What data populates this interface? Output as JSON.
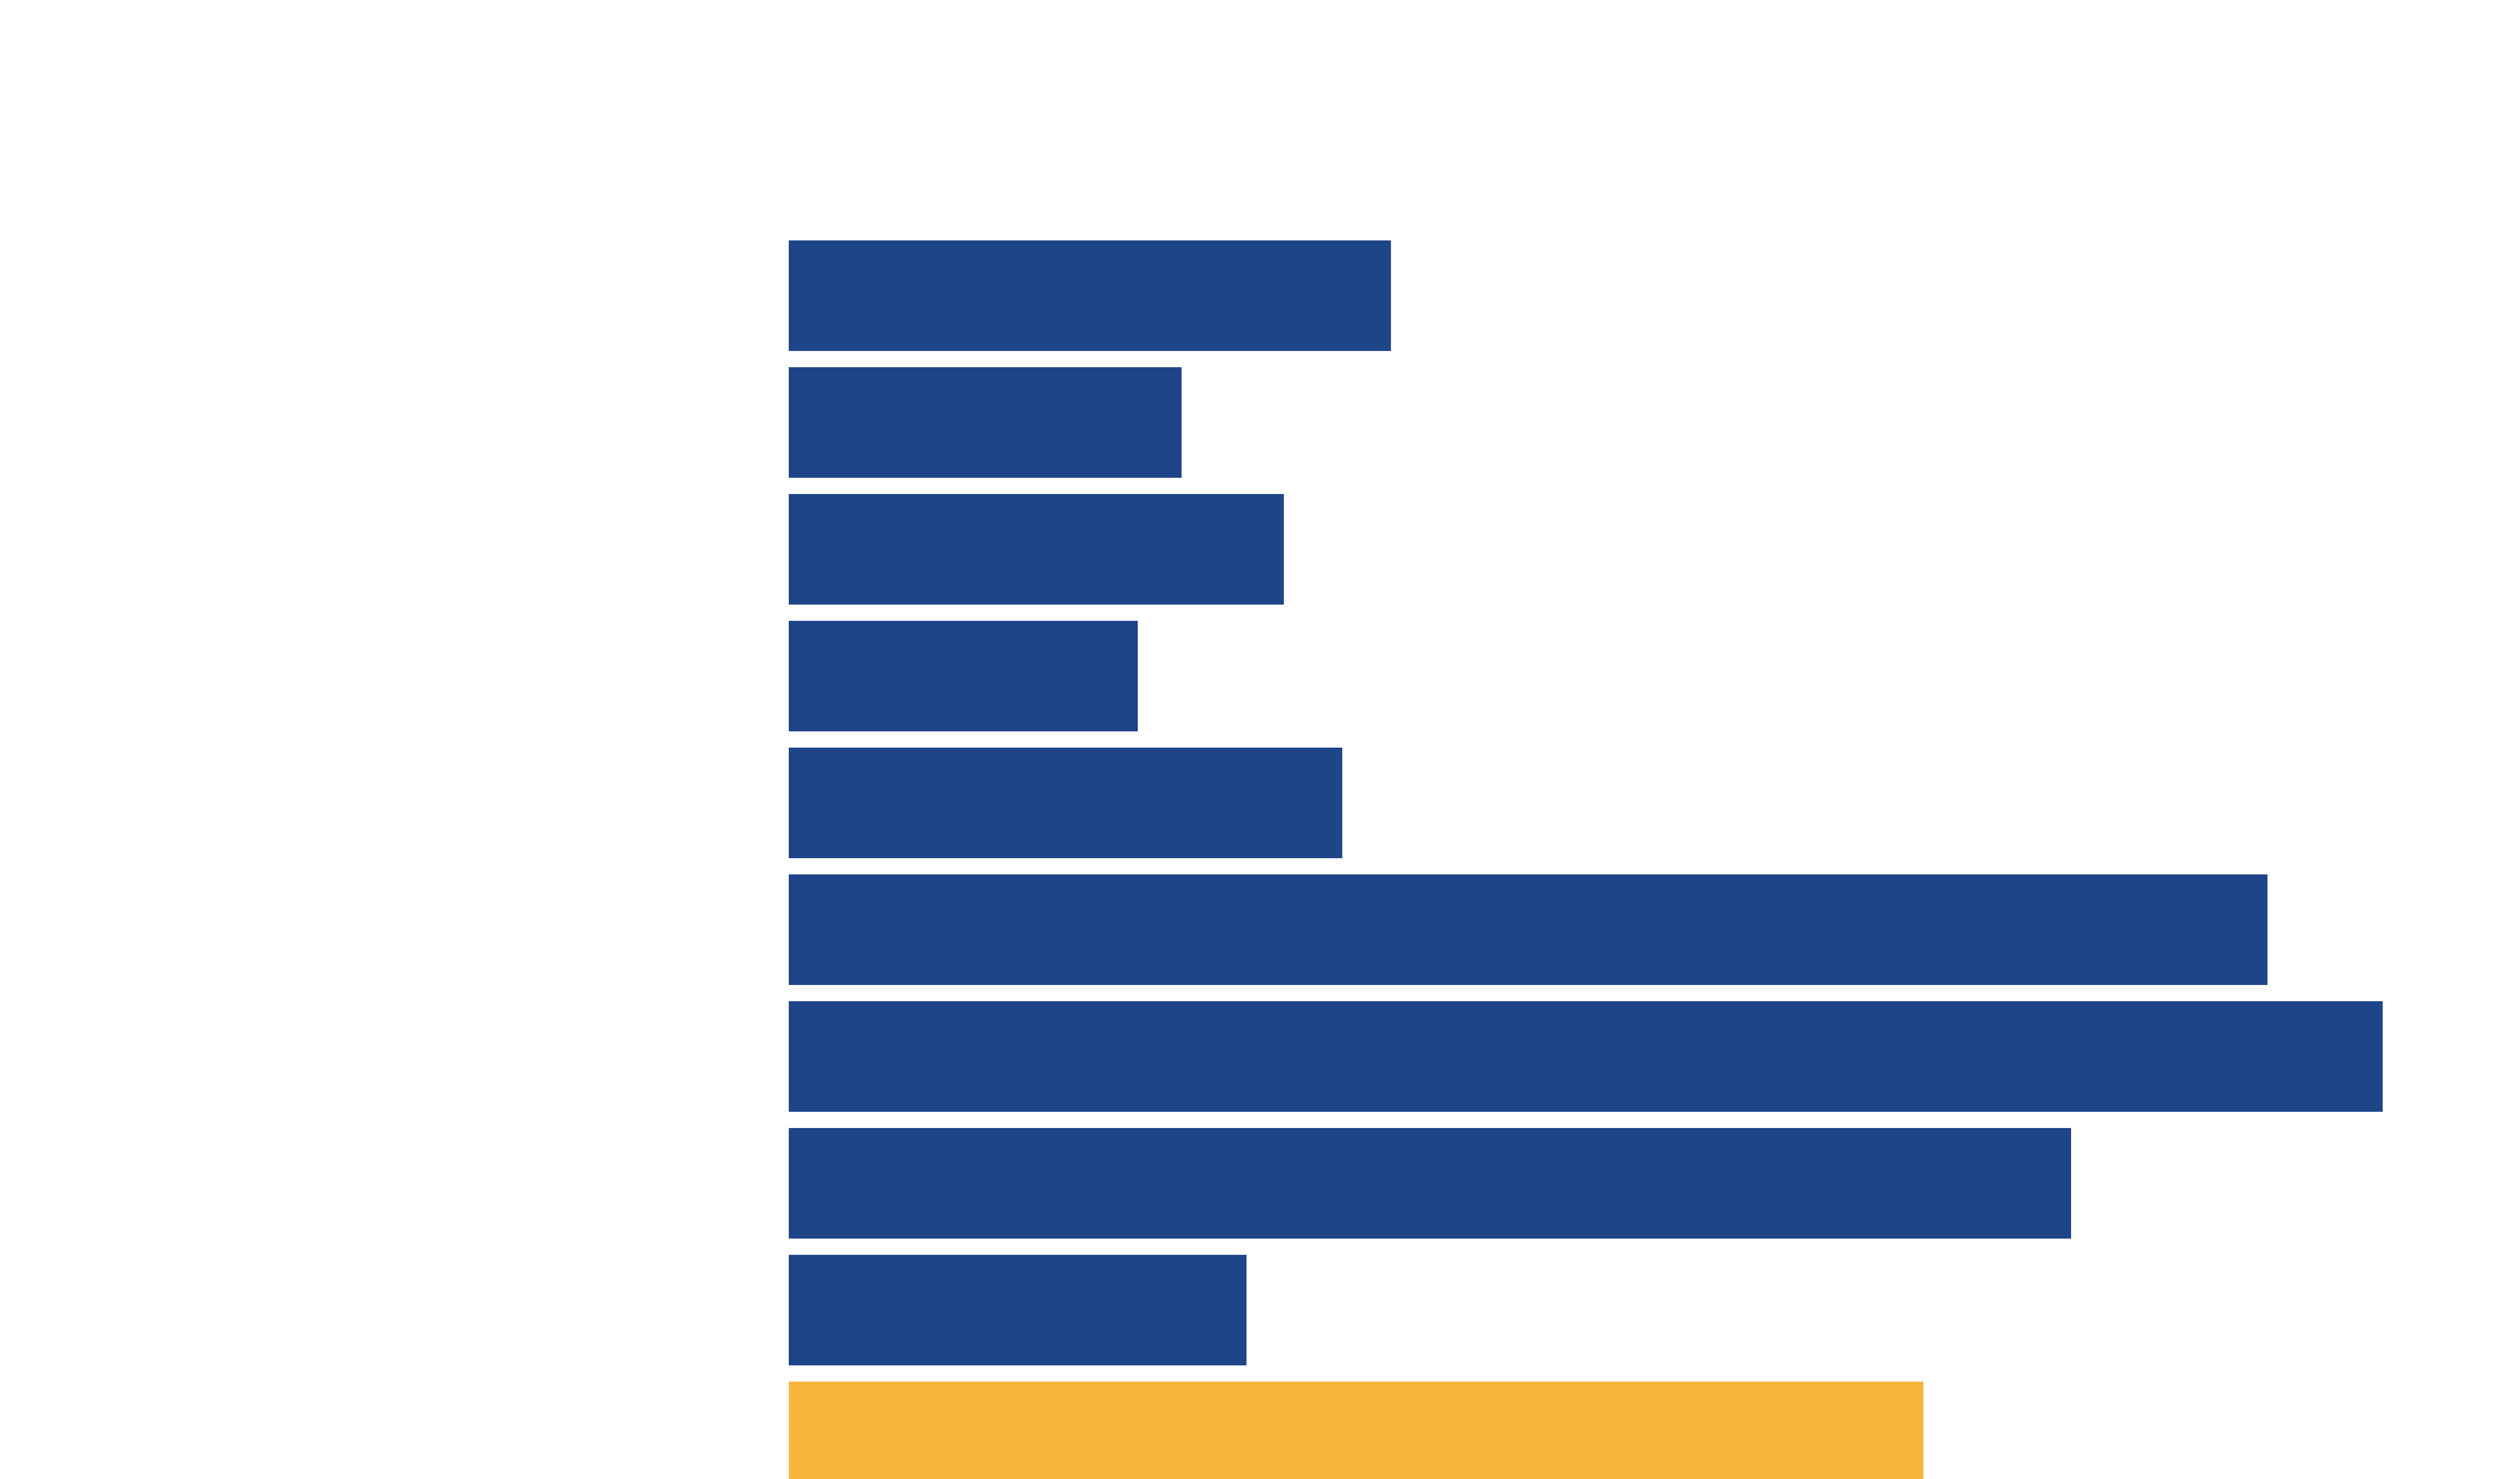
{
  "chart_data": {
    "type": "barh",
    "values": [
      371,
      242,
      305,
      215,
      341,
      911,
      982,
      790,
      282,
      699
    ],
    "colors": [
      "#1f4589",
      "#1f4589",
      "#1f4589",
      "#1f4589",
      "#1f4589",
      "#1f4589",
      "#1f4589",
      "#1f4589",
      "#1f4589",
      "#f5b63b"
    ],
    "xlim": [
      0,
      1000
    ]
  }
}
